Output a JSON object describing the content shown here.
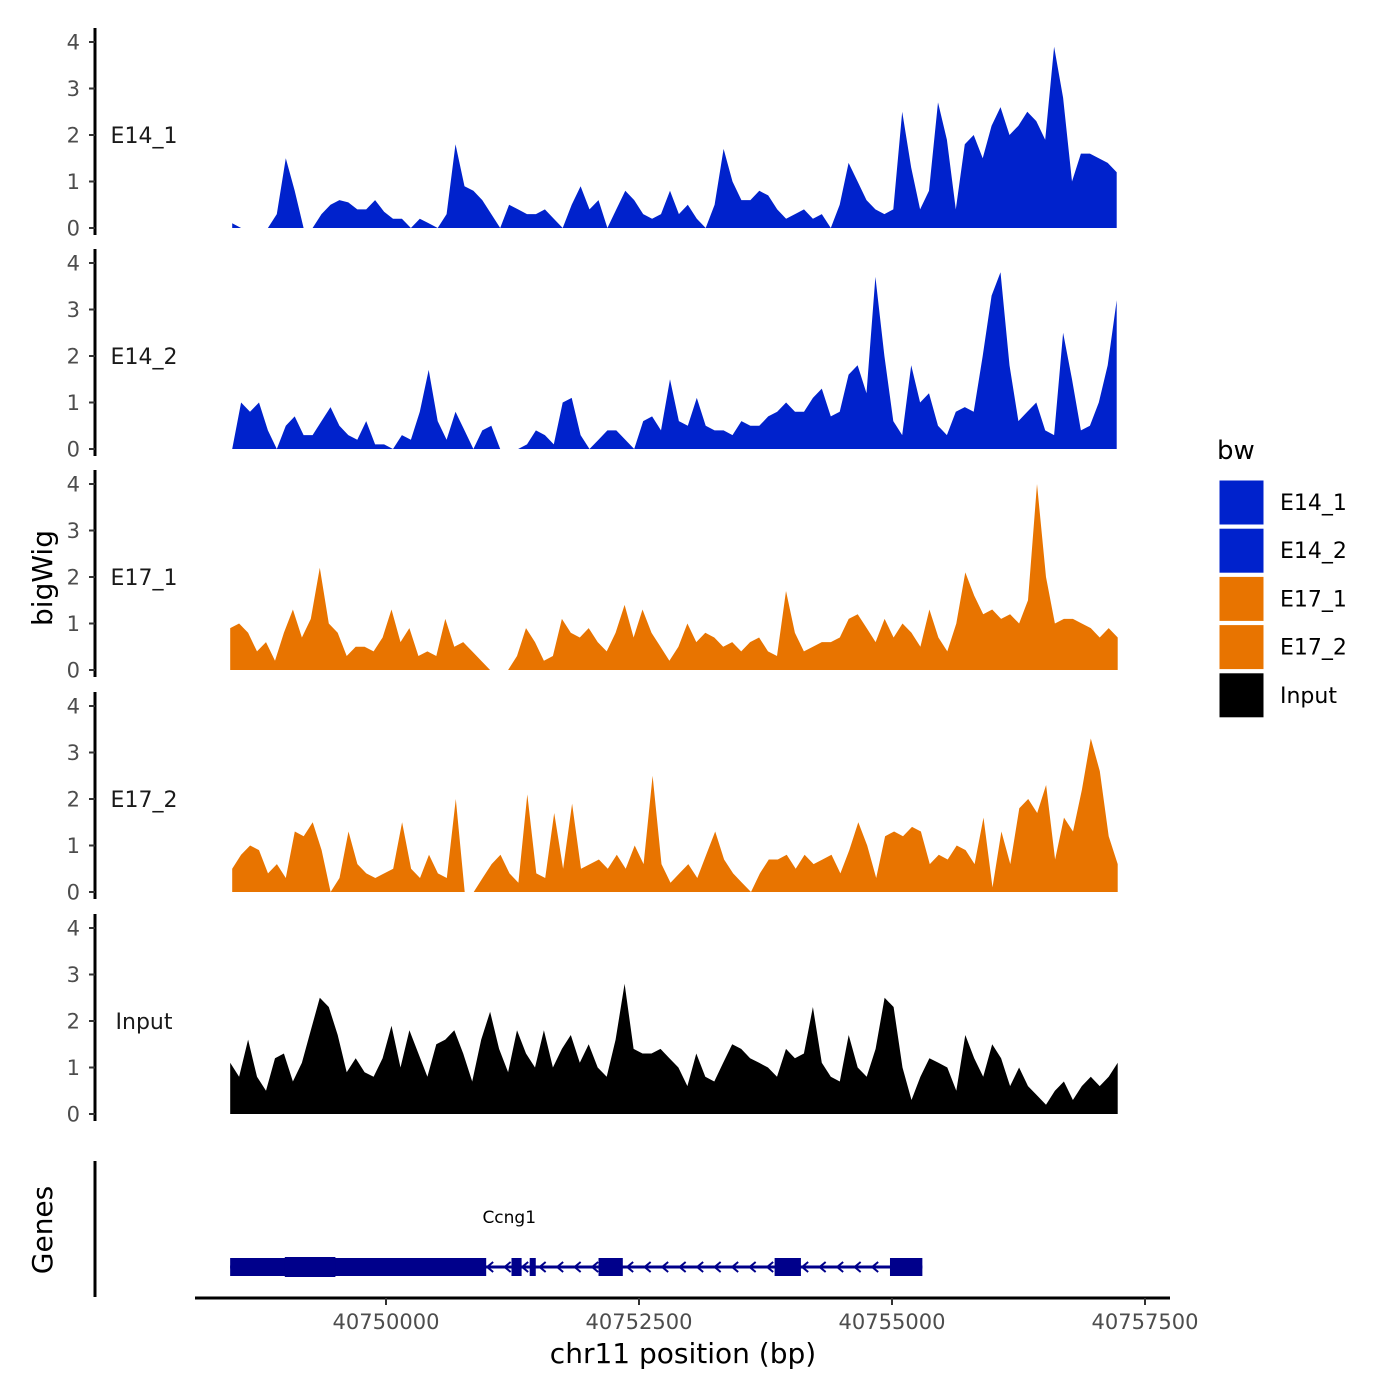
{
  "chart_data": {
    "type": "area",
    "ylabel": "bigWig",
    "genes_label": "Genes",
    "xlabel": "chr11 position (bp)",
    "x_tick_labels": [
      "40750000",
      "40752500",
      "40755000",
      "40757500"
    ],
    "x_ticks": [
      40750000,
      40752500,
      40755000,
      40757500
    ],
    "xlim": [
      40748000,
      40757700
    ],
    "ylim": [
      0,
      4
    ],
    "y_tick_labels": [
      "0",
      "1",
      "2",
      "3",
      "4"
    ],
    "legend": {
      "title": "bw",
      "entries": [
        {
          "name": "E14_1",
          "color": "#0022cc"
        },
        {
          "name": "E14_2",
          "color": "#0022cc"
        },
        {
          "name": "E17_1",
          "color": "#e87400"
        },
        {
          "name": "E17_2",
          "color": "#e87400"
        },
        {
          "name": "Input",
          "color": "#000000"
        }
      ]
    },
    "series": [
      {
        "name": "E14_1",
        "color": "#0022cc",
        "x_start": 40748480,
        "x_end": 40757220,
        "values": [
          0.1,
          0,
          0,
          0,
          0,
          0.3,
          1.5,
          0.8,
          0,
          0,
          0.3,
          0.5,
          0.6,
          0.55,
          0.4,
          0.4,
          0.6,
          0.35,
          0.2,
          0.2,
          0,
          0.2,
          0.1,
          0,
          0.3,
          1.8,
          0.9,
          0.8,
          0.6,
          0.3,
          0,
          0.5,
          0.4,
          0.3,
          0.3,
          0.4,
          0.2,
          0,
          0.5,
          0.9,
          0.4,
          0.6,
          0,
          0.4,
          0.8,
          0.6,
          0.3,
          0.2,
          0.3,
          0.8,
          0.3,
          0.5,
          0.2,
          0,
          0.5,
          1.7,
          1.0,
          0.6,
          0.6,
          0.8,
          0.7,
          0.4,
          0.2,
          0.3,
          0.4,
          0.2,
          0.3,
          0,
          0.5,
          1.4,
          1.0,
          0.6,
          0.4,
          0.3,
          0.4,
          2.5,
          1.3,
          0.4,
          0.8,
          2.7,
          1.9,
          0.4,
          1.8,
          2.0,
          1.5,
          2.2,
          2.6,
          2.0,
          2.2,
          2.5,
          2.3,
          1.9,
          3.9,
          2.8,
          1.0,
          1.6,
          1.6,
          1.5,
          1.4,
          1.2
        ]
      },
      {
        "name": "E14_2",
        "color": "#0022cc",
        "x_start": 40748480,
        "x_end": 40757220,
        "values": [
          0,
          1.0,
          0.8,
          1.0,
          0.4,
          0,
          0.5,
          0.7,
          0.3,
          0.3,
          0.6,
          0.9,
          0.5,
          0.3,
          0.2,
          0.6,
          0.1,
          0.1,
          0,
          0.3,
          0.2,
          0.8,
          1.7,
          0.6,
          0.2,
          0.8,
          0.4,
          0,
          0.4,
          0.5,
          0,
          0,
          0,
          0.1,
          0.4,
          0.3,
          0.1,
          1.0,
          1.1,
          0.3,
          0,
          0.2,
          0.4,
          0.4,
          0.2,
          0,
          0.6,
          0.7,
          0.4,
          1.5,
          0.6,
          0.5,
          1.1,
          0.5,
          0.4,
          0.4,
          0.3,
          0.6,
          0.5,
          0.5,
          0.7,
          0.8,
          1.0,
          0.8,
          0.8,
          1.1,
          1.3,
          0.7,
          0.8,
          1.6,
          1.8,
          1.2,
          3.7,
          2.0,
          0.6,
          0.3,
          1.8,
          1.0,
          1.2,
          0.5,
          0.3,
          0.8,
          0.9,
          0.8,
          2.0,
          3.3,
          3.8,
          1.8,
          0.6,
          0.8,
          1.0,
          0.4,
          0.3,
          2.5,
          1.5,
          0.4,
          0.5,
          1.0,
          1.8,
          3.2
        ]
      },
      {
        "name": "E17_1",
        "color": "#e87400",
        "x_start": 40748460,
        "x_end": 40757230,
        "values": [
          0.9,
          1.0,
          0.8,
          0.4,
          0.6,
          0.2,
          0.8,
          1.3,
          0.7,
          1.1,
          2.2,
          1.0,
          0.8,
          0.3,
          0.5,
          0.5,
          0.4,
          0.7,
          1.3,
          0.6,
          0.9,
          0.3,
          0.4,
          0.3,
          1.1,
          0.5,
          0.6,
          0.4,
          0.2,
          0,
          0,
          0,
          0.3,
          0.9,
          0.6,
          0.2,
          0.3,
          1.1,
          0.8,
          0.7,
          0.9,
          0.6,
          0.4,
          0.8,
          1.4,
          0.7,
          1.3,
          0.8,
          0.5,
          0.2,
          0.5,
          1.0,
          0.6,
          0.8,
          0.7,
          0.5,
          0.6,
          0.4,
          0.6,
          0.7,
          0.4,
          0.3,
          1.7,
          0.8,
          0.4,
          0.5,
          0.6,
          0.6,
          0.7,
          1.1,
          1.2,
          0.9,
          0.6,
          1.1,
          0.7,
          1.0,
          0.8,
          0.5,
          1.3,
          0.7,
          0.4,
          1.0,
          2.1,
          1.6,
          1.2,
          1.3,
          1.1,
          1.2,
          1.0,
          1.5,
          4.0,
          2.0,
          1.0,
          1.1,
          1.1,
          1.0,
          0.9,
          0.7,
          0.9,
          0.7
        ]
      },
      {
        "name": "E17_2",
        "color": "#e87400",
        "x_start": 40748480,
        "x_end": 40757230,
        "values": [
          0.5,
          0.8,
          1.0,
          0.9,
          0.4,
          0.6,
          0.3,
          1.3,
          1.2,
          1.5,
          0.9,
          0,
          0.3,
          1.3,
          0.6,
          0.4,
          0.3,
          0.4,
          0.5,
          1.5,
          0.5,
          0.3,
          0.8,
          0.4,
          0.3,
          2.0,
          0,
          0,
          0.3,
          0.6,
          0.8,
          0.4,
          0.2,
          2.1,
          0.4,
          0.3,
          1.7,
          0.5,
          1.9,
          0.5,
          0.6,
          0.7,
          0.5,
          0.8,
          0.5,
          1.0,
          0.6,
          2.5,
          0.6,
          0.2,
          0.4,
          0.6,
          0.3,
          0.8,
          1.3,
          0.7,
          0.4,
          0.2,
          0,
          0.4,
          0.7,
          0.7,
          0.8,
          0.5,
          0.8,
          0.6,
          0.7,
          0.8,
          0.4,
          0.9,
          1.5,
          1.0,
          0.3,
          1.2,
          1.3,
          1.2,
          1.4,
          1.3,
          0.6,
          0.8,
          0.7,
          1.0,
          0.9,
          0.6,
          1.6,
          0.1,
          1.3,
          0.6,
          1.8,
          2.0,
          1.7,
          2.3,
          0.7,
          1.6,
          1.3,
          2.2,
          3.3,
          2.6,
          1.2,
          0.6
        ]
      },
      {
        "name": "Input",
        "color": "#000000",
        "x_start": 40748460,
        "x_end": 40757230,
        "values": [
          1.1,
          0.8,
          1.6,
          0.8,
          0.5,
          1.2,
          1.3,
          0.7,
          1.1,
          1.8,
          2.5,
          2.3,
          1.7,
          0.9,
          1.2,
          0.9,
          0.8,
          1.2,
          1.9,
          1.0,
          1.8,
          1.3,
          0.8,
          1.5,
          1.6,
          1.8,
          1.3,
          0.7,
          1.6,
          2.2,
          1.4,
          0.9,
          1.8,
          1.3,
          1.0,
          1.8,
          1.0,
          1.4,
          1.7,
          1.1,
          1.5,
          1.0,
          0.8,
          1.6,
          2.8,
          1.4,
          1.3,
          1.3,
          1.4,
          1.2,
          1.0,
          0.6,
          1.3,
          0.8,
          0.7,
          1.1,
          1.5,
          1.4,
          1.2,
          1.1,
          1.0,
          0.8,
          1.4,
          1.2,
          1.3,
          2.3,
          1.1,
          0.8,
          0.7,
          1.7,
          1.0,
          0.8,
          1.4,
          2.5,
          2.3,
          1.0,
          0.3,
          0.8,
          1.2,
          1.1,
          1.0,
          0.5,
          1.7,
          1.2,
          0.8,
          1.5,
          1.2,
          0.6,
          1.0,
          0.6,
          0.4,
          0.2,
          0.5,
          0.7,
          0.3,
          0.6,
          0.8,
          0.6,
          0.8,
          1.1
        ]
      }
    ],
    "gene": {
      "name": "Ccng1",
      "color": "#00008b",
      "strand": "-",
      "start": 40748460,
      "end": 40755300,
      "exons": [
        [
          40748460,
          40750990
        ],
        [
          40751240,
          40751340
        ],
        [
          40751420,
          40751480
        ],
        [
          40752100,
          40752340
        ],
        [
          40753840,
          40754100
        ],
        [
          40754980,
          40755300
        ]
      ],
      "thick_exons": [
        [
          40749000,
          40749500
        ]
      ]
    }
  }
}
